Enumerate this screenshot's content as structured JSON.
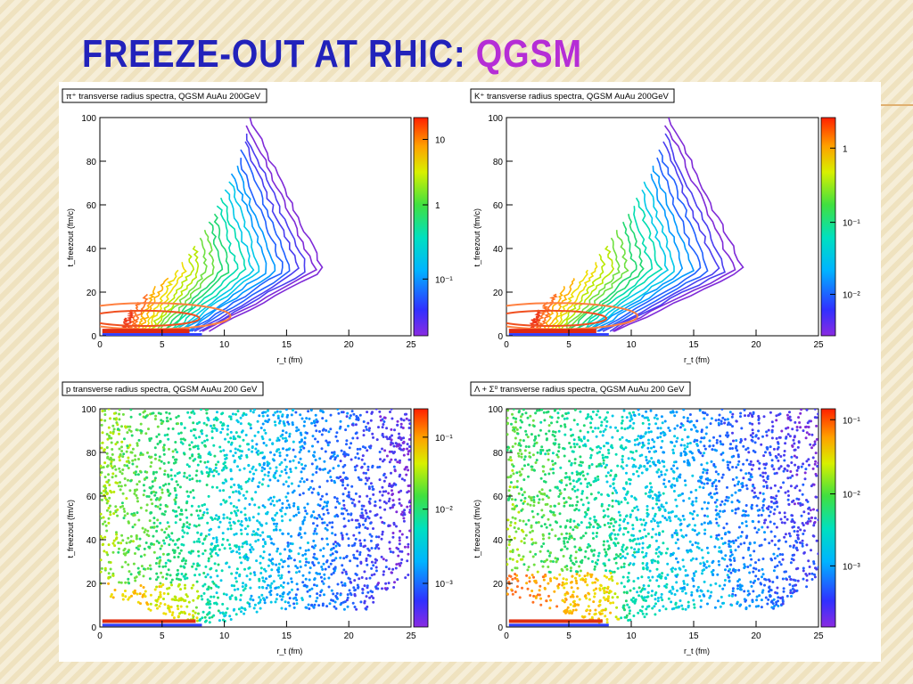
{
  "slide": {
    "title_main": "FREEZE-OUT AT RHIC: ",
    "title_highlight": "QGSM",
    "title_color": "#2222bb",
    "highlight_color": "#b52dd6"
  },
  "chart_data": [
    {
      "type": "heatmap",
      "title": "π⁺ transverse radius spectra, QGSM AuAu 200GeV",
      "xlabel": "r_t (fm)",
      "ylabel": "t_freezout (fm/c)",
      "xlim": [
        0,
        25
      ],
      "ylim": [
        0,
        100
      ],
      "xticks": [
        "0",
        "5",
        "10",
        "15",
        "20",
        "25"
      ],
      "yticks": [
        "0",
        "20",
        "40",
        "60",
        "80",
        "100"
      ],
      "zscale": "log",
      "colorbar_ticks": [
        "10",
        "1",
        "10⁻¹"
      ],
      "colorbar_tick_fracs": [
        0.9,
        0.6,
        0.26
      ],
      "boundary": {
        "max_r_at_t100": 12,
        "tip_r": 18,
        "tip_t": 30,
        "base_r": 8
      },
      "style": "contour"
    },
    {
      "type": "heatmap",
      "title": "K⁺ transverse radius spectra, QGSM AuAu 200GeV",
      "xlabel": "r_t (fm)",
      "ylabel": "t_freezout (fm/c)",
      "xlim": [
        0,
        25
      ],
      "ylim": [
        0,
        100
      ],
      "xticks": [
        "0",
        "5",
        "10",
        "15",
        "20",
        "25"
      ],
      "yticks": [
        "0",
        "20",
        "40",
        "60",
        "80",
        "100"
      ],
      "zscale": "log",
      "colorbar_ticks": [
        "1",
        "10⁻¹",
        "10⁻²"
      ],
      "colorbar_tick_fracs": [
        0.86,
        0.52,
        0.19
      ],
      "boundary": {
        "max_r_at_t100": 13,
        "tip_r": 19,
        "tip_t": 30,
        "base_r": 8
      },
      "style": "contour"
    },
    {
      "type": "heatmap",
      "title": "p transverse radius spectra, QGSM AuAu 200 GeV",
      "xlabel": "r_t (fm)",
      "ylabel": "t_freezout (fm/c)",
      "xlim": [
        0,
        25
      ],
      "ylim": [
        0,
        100
      ],
      "xticks": [
        "0",
        "5",
        "10",
        "15",
        "20",
        "25"
      ],
      "yticks": [
        "0",
        "20",
        "40",
        "60",
        "80",
        "100"
      ],
      "zscale": "log",
      "colorbar_ticks": [
        "10⁻¹",
        "10⁻²",
        "10⁻³"
      ],
      "colorbar_tick_fracs": [
        0.87,
        0.54,
        0.2
      ],
      "boundary": {
        "max_r_at_t100": 25,
        "tip_r": 25,
        "tip_t": 40,
        "base_r": 8
      },
      "style": "scatter"
    },
    {
      "type": "heatmap",
      "title": "Λ + Σ⁰ transverse radius spectra, QGSM AuAu 200 GeV",
      "xlabel": "r_t (fm)",
      "ylabel": "t_freezout (fm/c)",
      "xlim": [
        0,
        25
      ],
      "ylim": [
        0,
        100
      ],
      "xticks": [
        "0",
        "5",
        "10",
        "15",
        "20",
        "25"
      ],
      "yticks": [
        "0",
        "20",
        "40",
        "60",
        "80",
        "100"
      ],
      "zscale": "log",
      "colorbar_ticks": [
        "10⁻¹",
        "10⁻²",
        "10⁻³"
      ],
      "colorbar_tick_fracs": [
        0.95,
        0.61,
        0.28
      ],
      "boundary": {
        "max_r_at_t100": 25,
        "tip_r": 25,
        "tip_t": 40,
        "base_r": 8
      },
      "style": "scatter"
    }
  ]
}
